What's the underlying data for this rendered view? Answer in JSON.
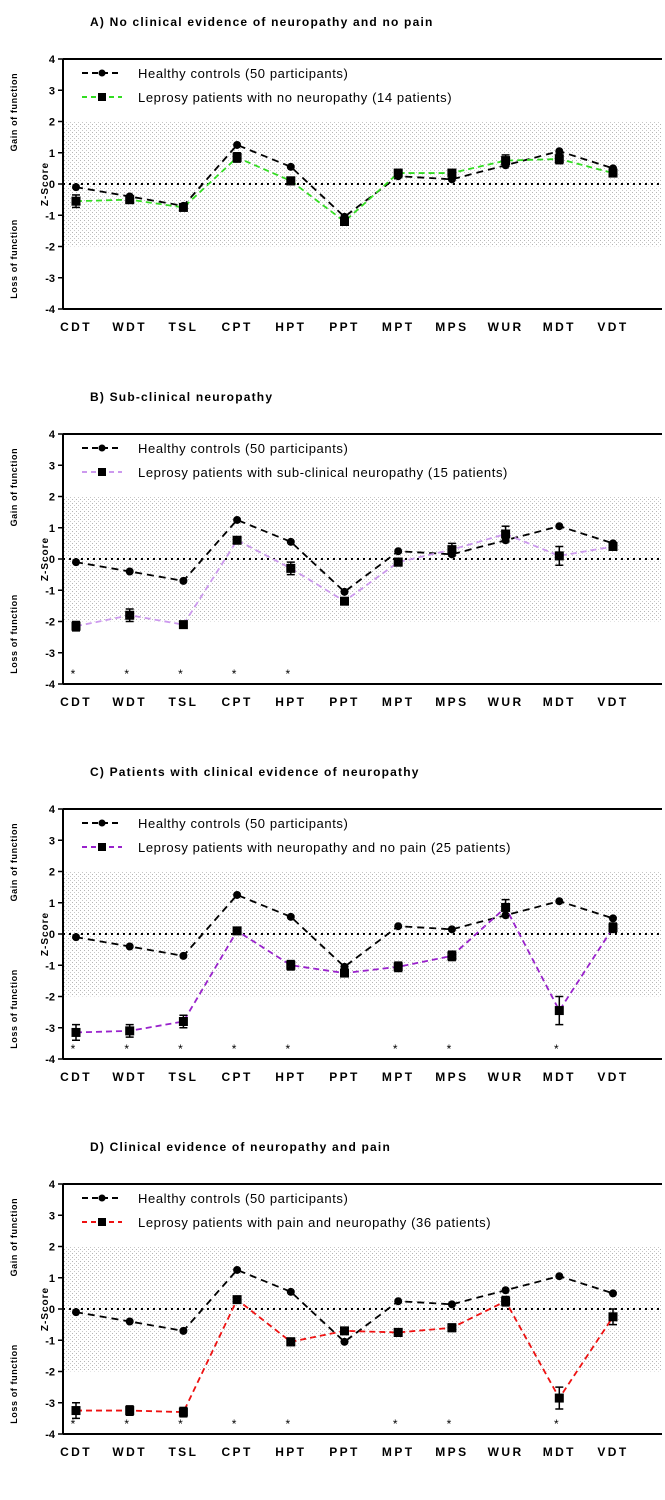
{
  "chart_data": [
    {
      "type": "line",
      "title": "A) No clinical evidence of neuropathy and no pain",
      "ylabel": "Z-Score",
      "ylabel_gain": "Gain of function",
      "ylabel_loss": "Loss of function",
      "ylim": [
        -4,
        4
      ],
      "yticks": [
        "4",
        "3",
        "2",
        "1",
        "0",
        "-1",
        "-2",
        "-3",
        "-4"
      ],
      "categories": [
        "CDT",
        "WDT",
        "TSL",
        "CPT",
        "HPT",
        "PPT",
        "MPT",
        "MPS",
        "WUR",
        "MDT",
        "VDT"
      ],
      "shaded_band": [
        -2,
        2
      ],
      "reference_line": 0,
      "series": [
        {
          "name": "Healthy controls (50 participants)",
          "color": "#000000",
          "marker": "circle",
          "values": [
            -0.1,
            -0.4,
            -0.7,
            1.25,
            0.55,
            -1.05,
            0.25,
            0.15,
            0.6,
            1.05,
            0.5
          ],
          "errors": [
            0.03,
            0.03,
            0.03,
            0.03,
            0.03,
            0.03,
            0.03,
            0.03,
            0.03,
            0.03,
            0.03
          ]
        },
        {
          "name": "Leprosy patients with no neuropathy (14 patients)",
          "color": "#33dd22",
          "marker": "square",
          "values": [
            -0.55,
            -0.5,
            -0.75,
            0.85,
            0.1,
            -1.2,
            0.35,
            0.35,
            0.75,
            0.8,
            0.35
          ],
          "errors": [
            0.2,
            0.12,
            0.1,
            0.15,
            0.12,
            0.1,
            0.1,
            0.1,
            0.18,
            0.15,
            0.08
          ]
        }
      ],
      "significance_marks": []
    },
    {
      "type": "line",
      "title": "B) Sub-clinical neuropathy",
      "ylabel": "Z-Score",
      "ylabel_gain": "Gain of function",
      "ylabel_loss": "Loss of function",
      "ylim": [
        -4,
        4
      ],
      "yticks": [
        "4",
        "3",
        "2",
        "1",
        "0",
        "-1",
        "-2",
        "-3",
        "-4"
      ],
      "categories": [
        "CDT",
        "WDT",
        "TSL",
        "CPT",
        "HPT",
        "PPT",
        "MPT",
        "MPS",
        "WUR",
        "MDT",
        "VDT"
      ],
      "shaded_band": [
        -2,
        2
      ],
      "reference_line": 0,
      "series": [
        {
          "name": "Healthy controls (50 participants)",
          "color": "#000000",
          "marker": "circle",
          "values": [
            -0.1,
            -0.4,
            -0.7,
            1.25,
            0.55,
            -1.05,
            0.25,
            0.15,
            0.6,
            1.05,
            0.5
          ],
          "errors": [
            0.03,
            0.03,
            0.03,
            0.03,
            0.03,
            0.03,
            0.03,
            0.03,
            0.03,
            0.03,
            0.03
          ]
        },
        {
          "name": "Leprosy patients with sub-clinical neuropathy (15 patients)",
          "color": "#cc99ee",
          "marker": "square",
          "values": [
            -2.15,
            -1.8,
            -2.1,
            0.6,
            -0.3,
            -1.35,
            -0.1,
            0.3,
            0.8,
            0.1,
            0.4
          ],
          "errors": [
            0.15,
            0.2,
            0.1,
            0.1,
            0.2,
            0.1,
            0.12,
            0.2,
            0.25,
            0.3,
            0.1
          ]
        }
      ],
      "significance_marks": [
        "*",
        "*",
        "*",
        "*",
        "*",
        "",
        "",
        "",
        "",
        "",
        ""
      ]
    },
    {
      "type": "line",
      "title": "C) Patients with clinical evidence of neuropathy",
      "ylabel": "Z-Score",
      "ylabel_gain": "Gain of function",
      "ylabel_loss": "Loss of function",
      "ylim": [
        -4,
        4
      ],
      "yticks": [
        "4",
        "3",
        "2",
        "1",
        "0",
        "-1",
        "-2",
        "-3",
        "-4"
      ],
      "categories": [
        "CDT",
        "WDT",
        "TSL",
        "CPT",
        "HPT",
        "PPT",
        "MPT",
        "MPS",
        "WUR",
        "MDT",
        "VDT"
      ],
      "shaded_band": [
        -2,
        2
      ],
      "reference_line": 0,
      "series": [
        {
          "name": "Healthy controls (50 participants)",
          "color": "#000000",
          "marker": "circle",
          "values": [
            -0.1,
            -0.4,
            -0.7,
            1.25,
            0.55,
            -1.05,
            0.25,
            0.15,
            0.6,
            1.05,
            0.5
          ],
          "errors": [
            0.03,
            0.03,
            0.03,
            0.03,
            0.03,
            0.03,
            0.03,
            0.03,
            0.03,
            0.03,
            0.03
          ]
        },
        {
          "name": "Leprosy patients with neuropathy and no pain (25 patients)",
          "color": "#9922cc",
          "marker": "square",
          "values": [
            -3.15,
            -3.1,
            -2.8,
            0.1,
            -1.0,
            -1.25,
            -1.05,
            -0.7,
            0.85,
            -2.45,
            0.2
          ],
          "errors": [
            0.25,
            0.2,
            0.2,
            0.1,
            0.15,
            0.1,
            0.15,
            0.15,
            0.25,
            0.45,
            0.15
          ]
        }
      ],
      "significance_marks": [
        "*",
        "*",
        "*",
        "*",
        "*",
        "",
        "*",
        "*",
        "",
        "*",
        ""
      ]
    },
    {
      "type": "line",
      "title": "D) Clinical evidence of neuropathy and pain",
      "ylabel": "Z-Score",
      "ylabel_gain": "Gain of function",
      "ylabel_loss": "Loss of function",
      "ylim": [
        -4,
        4
      ],
      "yticks": [
        "4",
        "3",
        "2",
        "1",
        "0",
        "-1",
        "-2",
        "-3",
        "-4"
      ],
      "categories": [
        "CDT",
        "WDT",
        "TSL",
        "CPT",
        "HPT",
        "PPT",
        "MPT",
        "MPS",
        "WUR",
        "MDT",
        "VDT"
      ],
      "shaded_band": [
        -2,
        2
      ],
      "reference_line": 0,
      "series": [
        {
          "name": "Healthy controls (50 participants)",
          "color": "#000000",
          "marker": "circle",
          "values": [
            -0.1,
            -0.4,
            -0.7,
            1.25,
            0.55,
            -1.05,
            0.25,
            0.15,
            0.6,
            1.05,
            0.5
          ],
          "errors": [
            0.03,
            0.03,
            0.03,
            0.03,
            0.03,
            0.03,
            0.03,
            0.03,
            0.03,
            0.03,
            0.03
          ]
        },
        {
          "name": "Leprosy patients with pain and neuropathy (36 patients)",
          "color": "#ee1111",
          "marker": "square",
          "values": [
            -3.25,
            -3.25,
            -3.3,
            0.3,
            -1.05,
            -0.7,
            -0.75,
            -0.6,
            0.25,
            -2.85,
            -0.25
          ],
          "errors": [
            0.25,
            0.15,
            0.15,
            0.1,
            0.12,
            0.1,
            0.12,
            0.12,
            0.15,
            0.35,
            0.25
          ]
        }
      ],
      "significance_marks": [
        "*",
        "*",
        "*",
        "*",
        "*",
        "",
        "*",
        "*",
        "",
        "*",
        ""
      ]
    }
  ]
}
